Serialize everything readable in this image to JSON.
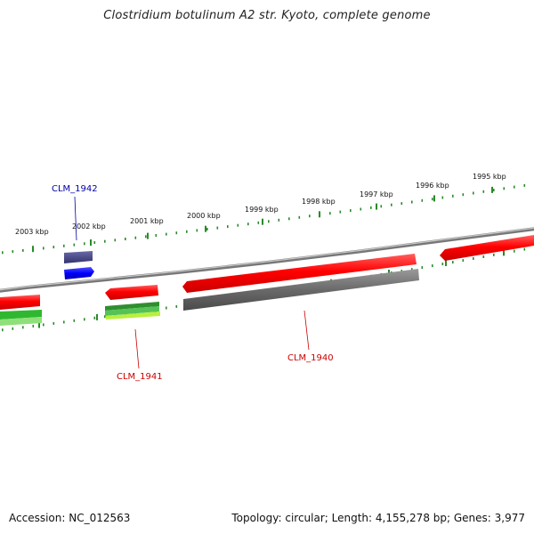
{
  "title": "Clostridium botulinum A2 str. Kyoto, complete genome",
  "footer": {
    "accession": "Accession: NC_012563",
    "summary": "Topology: circular; Length: 4,155,278 bp; Genes: 3,977"
  },
  "scale_labels": [
    "2003 kbp",
    "2002 kbp",
    "2001 kbp",
    "2000 kbp",
    "1999 kbp",
    "1998 kbp",
    "1997 kbp",
    "1996 kbp",
    "1995 kbp"
  ],
  "gene_labels": {
    "clm_1942": "CLM_1942",
    "clm_1941": "CLM_1941",
    "clm_1940": "CLM_1940"
  },
  "colors": {
    "forward_cds": "#ff0000",
    "reverse_cds": "#ff0000",
    "rna_feature": "#0000ff",
    "backbone": "#888888",
    "scale_ticks": "#2a8a2a",
    "label_blue": "#0000aa",
    "label_red": "#cc0000"
  }
}
